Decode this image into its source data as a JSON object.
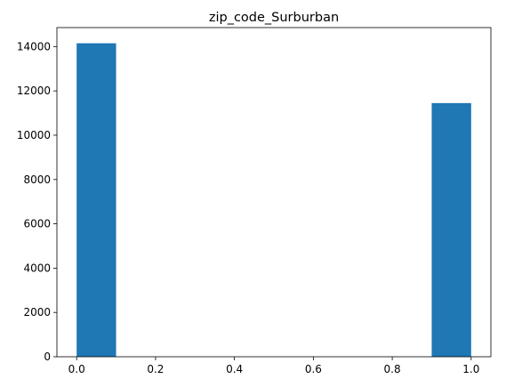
{
  "chart_data": {
    "type": "bar",
    "title": "zip_code_Surburban",
    "xlabel": "",
    "ylabel": "",
    "bar_color": "#1f77b4",
    "bins": [
      {
        "x0": 0.0,
        "x1": 0.1,
        "value": 14150
      },
      {
        "x0": 0.1,
        "x1": 0.2,
        "value": 0
      },
      {
        "x0": 0.2,
        "x1": 0.3,
        "value": 0
      },
      {
        "x0": 0.3,
        "x1": 0.4,
        "value": 0
      },
      {
        "x0": 0.4,
        "x1": 0.5,
        "value": 0
      },
      {
        "x0": 0.5,
        "x1": 0.6,
        "value": 0
      },
      {
        "x0": 0.6,
        "x1": 0.7,
        "value": 0
      },
      {
        "x0": 0.7,
        "x1": 0.8,
        "value": 0
      },
      {
        "x0": 0.8,
        "x1": 0.9,
        "value": 0
      },
      {
        "x0": 0.9,
        "x1": 1.0,
        "value": 11450
      }
    ],
    "xlim": [
      -0.05,
      1.05
    ],
    "ylim": [
      0,
      14858
    ],
    "xticks": [
      "0.0",
      "0.2",
      "0.4",
      "0.6",
      "0.8",
      "1.0"
    ],
    "yticks": [
      "0",
      "2000",
      "4000",
      "6000",
      "8000",
      "10000",
      "12000",
      "14000"
    ],
    "grid": false,
    "legend": "none"
  }
}
